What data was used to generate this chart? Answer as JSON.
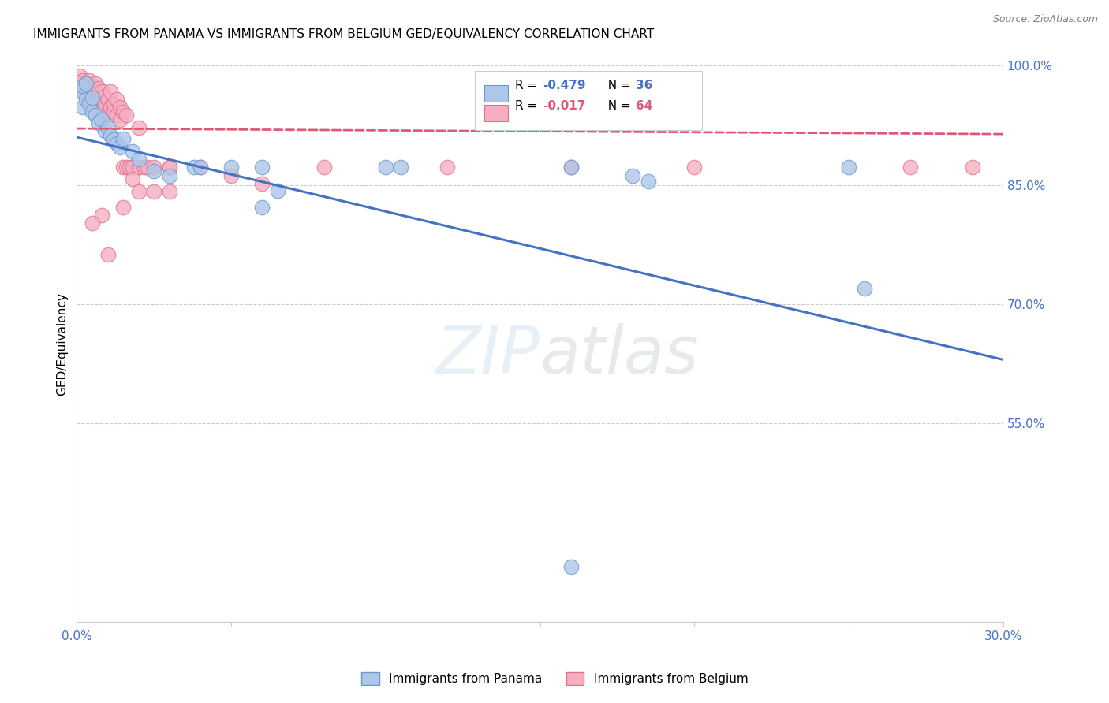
{
  "title": "IMMIGRANTS FROM PANAMA VS IMMIGRANTS FROM BELGIUM GED/EQUIVALENCY CORRELATION CHART",
  "source": "Source: ZipAtlas.com",
  "ylabel": "GED/Equivalency",
  "xmin": 0.0,
  "xmax": 0.3,
  "ymin": 0.3,
  "ymax": 1.0,
  "color_panama": "#aec6e8",
  "color_panama_edge": "#6699cc",
  "color_belgium": "#f4afc0",
  "color_belgium_edge": "#e07090",
  "color_line_panama": "#4472C4",
  "color_line_belgium": "#e05878",
  "watermark": "ZIPatlas",
  "legend_r1": "R = -0.479",
  "legend_n1": "N = 36",
  "legend_r2": "R = -0.017",
  "legend_n2": "N = 64",
  "panama_points": [
    [
      0.001,
      0.968
    ],
    [
      0.002,
      0.975
    ],
    [
      0.002,
      0.948
    ],
    [
      0.003,
      0.978
    ],
    [
      0.003,
      0.958
    ],
    [
      0.004,
      0.952
    ],
    [
      0.005,
      0.942
    ],
    [
      0.005,
      0.96
    ],
    [
      0.006,
      0.938
    ],
    [
      0.007,
      0.928
    ],
    [
      0.008,
      0.932
    ],
    [
      0.009,
      0.918
    ],
    [
      0.01,
      0.922
    ],
    [
      0.011,
      0.912
    ],
    [
      0.012,
      0.907
    ],
    [
      0.013,
      0.902
    ],
    [
      0.014,
      0.897
    ],
    [
      0.015,
      0.908
    ],
    [
      0.018,
      0.892
    ],
    [
      0.02,
      0.882
    ],
    [
      0.025,
      0.868
    ],
    [
      0.03,
      0.862
    ],
    [
      0.038,
      0.872
    ],
    [
      0.04,
      0.872
    ],
    [
      0.05,
      0.872
    ],
    [
      0.06,
      0.872
    ],
    [
      0.065,
      0.843
    ],
    [
      0.1,
      0.872
    ],
    [
      0.105,
      0.872
    ],
    [
      0.16,
      0.872
    ],
    [
      0.18,
      0.862
    ],
    [
      0.185,
      0.855
    ],
    [
      0.25,
      0.872
    ],
    [
      0.255,
      0.72
    ],
    [
      0.06,
      0.822
    ],
    [
      0.16,
      0.37
    ]
  ],
  "belgium_points": [
    [
      0.001,
      0.988
    ],
    [
      0.001,
      0.978
    ],
    [
      0.002,
      0.982
    ],
    [
      0.002,
      0.968
    ],
    [
      0.002,
      0.972
    ],
    [
      0.003,
      0.978
    ],
    [
      0.003,
      0.962
    ],
    [
      0.003,
      0.972
    ],
    [
      0.004,
      0.968
    ],
    [
      0.004,
      0.982
    ],
    [
      0.004,
      0.958
    ],
    [
      0.005,
      0.972
    ],
    [
      0.005,
      0.962
    ],
    [
      0.005,
      0.975
    ],
    [
      0.006,
      0.968
    ],
    [
      0.006,
      0.978
    ],
    [
      0.006,
      0.958
    ],
    [
      0.007,
      0.962
    ],
    [
      0.007,
      0.972
    ],
    [
      0.007,
      0.942
    ],
    [
      0.008,
      0.958
    ],
    [
      0.008,
      0.968
    ],
    [
      0.009,
      0.952
    ],
    [
      0.009,
      0.962
    ],
    [
      0.01,
      0.958
    ],
    [
      0.01,
      0.942
    ],
    [
      0.011,
      0.948
    ],
    [
      0.011,
      0.968
    ],
    [
      0.012,
      0.942
    ],
    [
      0.012,
      0.952
    ],
    [
      0.013,
      0.938
    ],
    [
      0.013,
      0.958
    ],
    [
      0.014,
      0.932
    ],
    [
      0.014,
      0.948
    ],
    [
      0.015,
      0.872
    ],
    [
      0.015,
      0.942
    ],
    [
      0.016,
      0.872
    ],
    [
      0.016,
      0.938
    ],
    [
      0.017,
      0.872
    ],
    [
      0.018,
      0.872
    ],
    [
      0.02,
      0.922
    ],
    [
      0.02,
      0.872
    ],
    [
      0.022,
      0.872
    ],
    [
      0.023,
      0.872
    ],
    [
      0.018,
      0.858
    ],
    [
      0.02,
      0.842
    ],
    [
      0.025,
      0.872
    ],
    [
      0.025,
      0.842
    ],
    [
      0.03,
      0.872
    ],
    [
      0.03,
      0.842
    ],
    [
      0.008,
      0.812
    ],
    [
      0.015,
      0.822
    ],
    [
      0.005,
      0.802
    ],
    [
      0.01,
      0.762
    ],
    [
      0.03,
      0.872
    ],
    [
      0.04,
      0.872
    ],
    [
      0.05,
      0.862
    ],
    [
      0.06,
      0.852
    ],
    [
      0.16,
      0.872
    ],
    [
      0.2,
      0.872
    ],
    [
      0.27,
      0.872
    ],
    [
      0.29,
      0.872
    ],
    [
      0.08,
      0.872
    ],
    [
      0.12,
      0.872
    ]
  ]
}
